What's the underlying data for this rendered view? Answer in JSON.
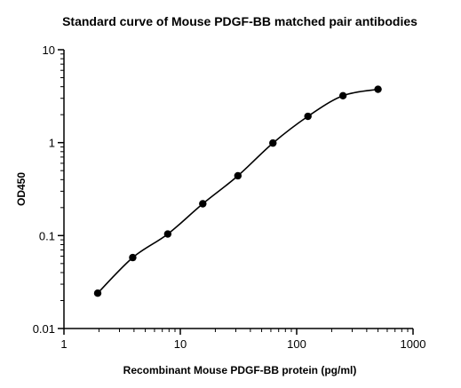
{
  "chart_data": {
    "type": "scatter",
    "title": "Standard curve of Mouse PDGF-BB matched pair antibodies",
    "xlabel": "Recombinant Mouse PDGF-BB protein (pg/ml)",
    "ylabel": "OD450",
    "xscale": "log",
    "yscale": "log",
    "xlim": [
      1,
      1000
    ],
    "ylim": [
      0.01,
      10
    ],
    "x_ticks": [
      "1",
      "10",
      "100",
      "1000"
    ],
    "y_ticks": [
      "0.01",
      "0.1",
      "1",
      "10"
    ],
    "grid": false,
    "legend": "none",
    "series": [
      {
        "x": [
          1.95,
          3.9,
          7.8,
          15.6,
          31.25,
          62.5,
          125,
          250,
          500
        ],
        "y": [
          0.024,
          0.058,
          0.104,
          0.22,
          0.44,
          0.99,
          1.92,
          3.2,
          3.75
        ]
      }
    ],
    "fit_curve": true
  }
}
